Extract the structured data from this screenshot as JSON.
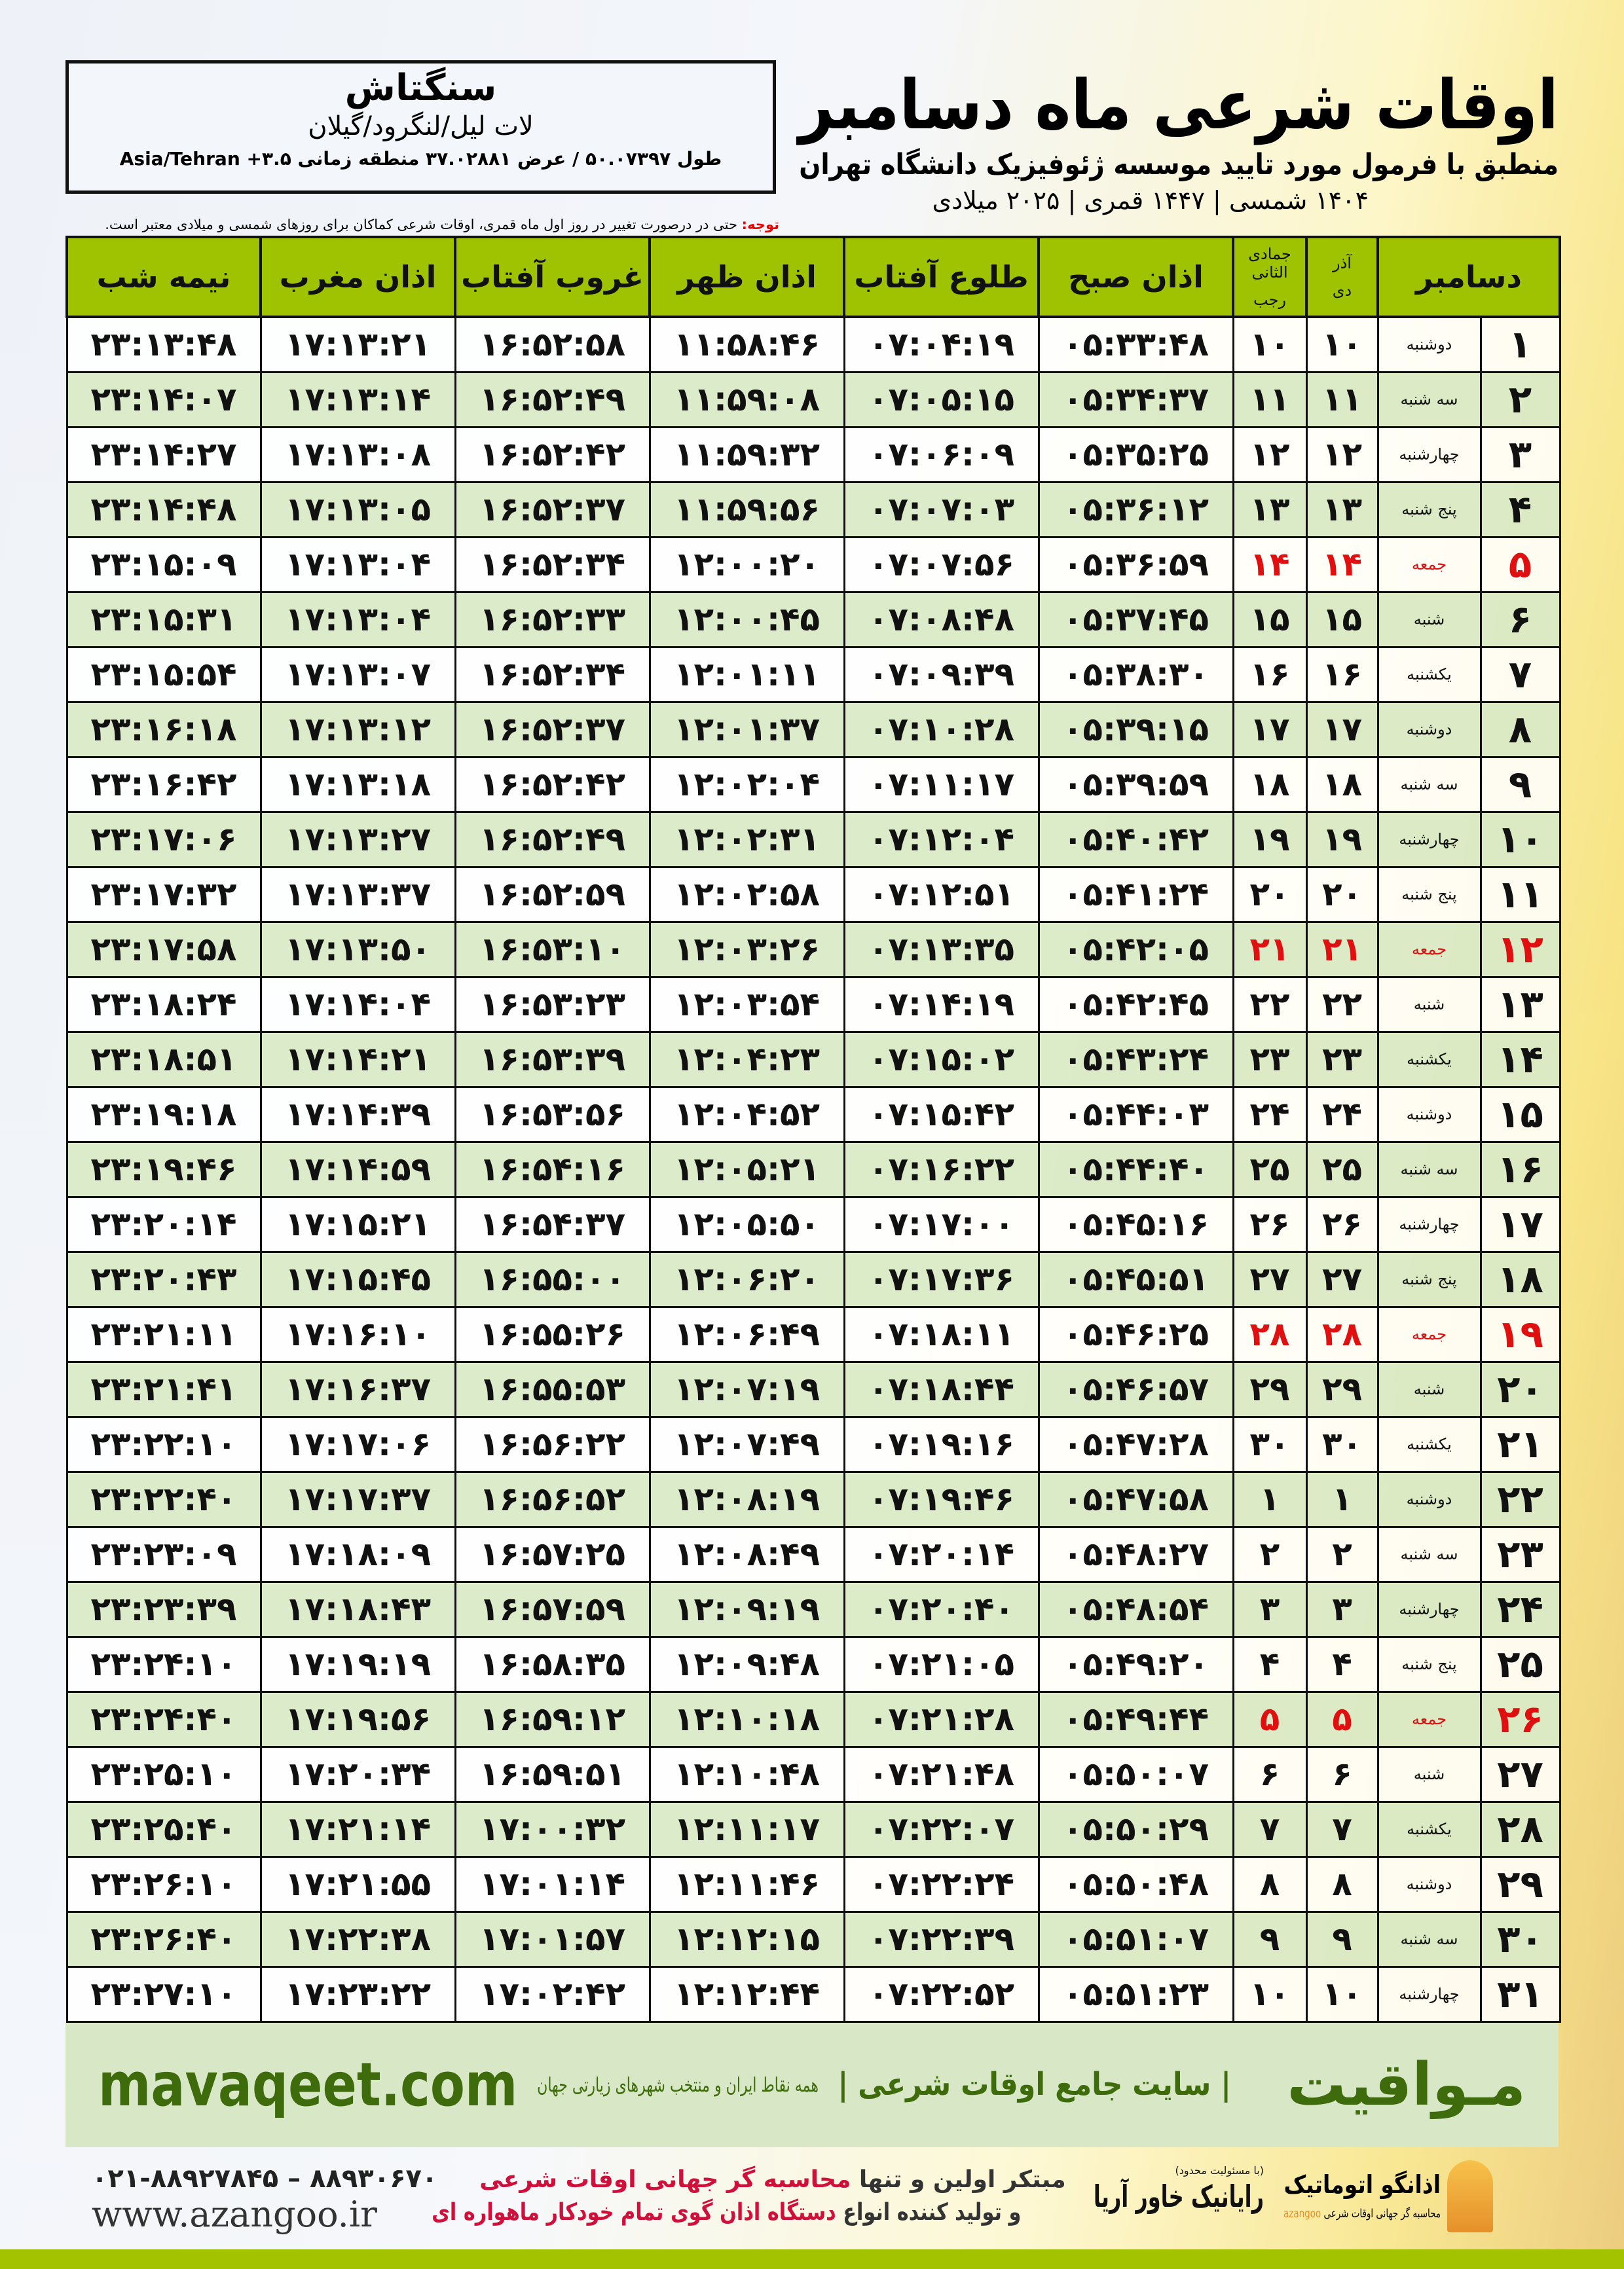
{
  "header": {
    "title": "اوقات شرعی ماه دسامبر",
    "subtitle": "منطبق با فرمول مورد تایید موسسه ژئوفیزیک دانشگاه تهران",
    "dates": "۱۴۰۴ شمسی | ۱۴۴۷ قمری | ۲۰۲۵ میلادی"
  },
  "location": {
    "city": "سنگتاش",
    "region": "لات لیل/لنگرود/گیلان",
    "coords": "طول ۵۰.۰۷۳۹۷ / عرض ۳۷.۰۲۸۸۱ منطقه زمانی ۳.۵+ Asia/Tehran"
  },
  "note": {
    "label": "توجه:",
    "text": " حتی در درصورت تغییر در روز اول ماه قمری، اوقات شرعی کماکان برای روزهای شمسی و میلادی معتبر است."
  },
  "table": {
    "headers": {
      "month": "دسامبر",
      "dey_top": "آذر",
      "dey": "دی",
      "rajab_top": "جمادی الثانی",
      "rajab": "رجب",
      "sobh": "اذان صبح",
      "tolu": "طلوع آفتاب",
      "zohr": "اذان ظهر",
      "ghorub": "غروب آفتاب",
      "maghrib": "اذان مغرب",
      "nime": "نیمه شب"
    },
    "friday_color": "#e01010",
    "header_color": "#9fc300",
    "rows": [
      {
        "d": "۱",
        "w": "دوشنبه",
        "dey": "۱۰",
        "rj": "۱۰",
        "sobh": "۰۵:۳۳:۴۸",
        "tolu": "۰۷:۰۴:۱۹",
        "zohr": "۱۱:۵۸:۴۶",
        "ghorub": "۱۶:۵۲:۵۸",
        "maghrib": "۱۷:۱۳:۲۱",
        "nime": "۲۳:۱۳:۴۸"
      },
      {
        "d": "۲",
        "w": "سه شنبه",
        "dey": "۱۱",
        "rj": "۱۱",
        "sobh": "۰۵:۳۴:۳۷",
        "tolu": "۰۷:۰۵:۱۵",
        "zohr": "۱۱:۵۹:۰۸",
        "ghorub": "۱۶:۵۲:۴۹",
        "maghrib": "۱۷:۱۳:۱۴",
        "nime": "۲۳:۱۴:۰۷"
      },
      {
        "d": "۳",
        "w": "چهارشنبه",
        "dey": "۱۲",
        "rj": "۱۲",
        "sobh": "۰۵:۳۵:۲۵",
        "tolu": "۰۷:۰۶:۰۹",
        "zohr": "۱۱:۵۹:۳۲",
        "ghorub": "۱۶:۵۲:۴۲",
        "maghrib": "۱۷:۱۳:۰۸",
        "nime": "۲۳:۱۴:۲۷"
      },
      {
        "d": "۴",
        "w": "پنج شنبه",
        "dey": "۱۳",
        "rj": "۱۳",
        "sobh": "۰۵:۳۶:۱۲",
        "tolu": "۰۷:۰۷:۰۳",
        "zohr": "۱۱:۵۹:۵۶",
        "ghorub": "۱۶:۵۲:۳۷",
        "maghrib": "۱۷:۱۳:۰۵",
        "nime": "۲۳:۱۴:۴۸"
      },
      {
        "d": "۵",
        "w": "جمعه",
        "dey": "۱۴",
        "rj": "۱۴",
        "sobh": "۰۵:۳۶:۵۹",
        "tolu": "۰۷:۰۷:۵۶",
        "zohr": "۱۲:۰۰:۲۰",
        "ghorub": "۱۶:۵۲:۳۴",
        "maghrib": "۱۷:۱۳:۰۴",
        "nime": "۲۳:۱۵:۰۹",
        "fri": true
      },
      {
        "d": "۶",
        "w": "شنبه",
        "dey": "۱۵",
        "rj": "۱۵",
        "sobh": "۰۵:۳۷:۴۵",
        "tolu": "۰۷:۰۸:۴۸",
        "zohr": "۱۲:۰۰:۴۵",
        "ghorub": "۱۶:۵۲:۳۳",
        "maghrib": "۱۷:۱۳:۰۴",
        "nime": "۲۳:۱۵:۳۱"
      },
      {
        "d": "۷",
        "w": "یکشنبه",
        "dey": "۱۶",
        "rj": "۱۶",
        "sobh": "۰۵:۳۸:۳۰",
        "tolu": "۰۷:۰۹:۳۹",
        "zohr": "۱۲:۰۱:۱۱",
        "ghorub": "۱۶:۵۲:۳۴",
        "maghrib": "۱۷:۱۳:۰۷",
        "nime": "۲۳:۱۵:۵۴"
      },
      {
        "d": "۸",
        "w": "دوشنبه",
        "dey": "۱۷",
        "rj": "۱۷",
        "sobh": "۰۵:۳۹:۱۵",
        "tolu": "۰۷:۱۰:۲۸",
        "zohr": "۱۲:۰۱:۳۷",
        "ghorub": "۱۶:۵۲:۳۷",
        "maghrib": "۱۷:۱۳:۱۲",
        "nime": "۲۳:۱۶:۱۸"
      },
      {
        "d": "۹",
        "w": "سه شنبه",
        "dey": "۱۸",
        "rj": "۱۸",
        "sobh": "۰۵:۳۹:۵۹",
        "tolu": "۰۷:۱۱:۱۷",
        "zohr": "۱۲:۰۲:۰۴",
        "ghorub": "۱۶:۵۲:۴۲",
        "maghrib": "۱۷:۱۳:۱۸",
        "nime": "۲۳:۱۶:۴۲"
      },
      {
        "d": "۱۰",
        "w": "چهارشنبه",
        "dey": "۱۹",
        "rj": "۱۹",
        "sobh": "۰۵:۴۰:۴۲",
        "tolu": "۰۷:۱۲:۰۴",
        "zohr": "۱۲:۰۲:۳۱",
        "ghorub": "۱۶:۵۲:۴۹",
        "maghrib": "۱۷:۱۳:۲۷",
        "nime": "۲۳:۱۷:۰۶"
      },
      {
        "d": "۱۱",
        "w": "پنج شنبه",
        "dey": "۲۰",
        "rj": "۲۰",
        "sobh": "۰۵:۴۱:۲۴",
        "tolu": "۰۷:۱۲:۵۱",
        "zohr": "۱۲:۰۲:۵۸",
        "ghorub": "۱۶:۵۲:۵۹",
        "maghrib": "۱۷:۱۳:۳۷",
        "nime": "۲۳:۱۷:۳۲"
      },
      {
        "d": "۱۲",
        "w": "جمعه",
        "dey": "۲۱",
        "rj": "۲۱",
        "sobh": "۰۵:۴۲:۰۵",
        "tolu": "۰۷:۱۳:۳۵",
        "zohr": "۱۲:۰۳:۲۶",
        "ghorub": "۱۶:۵۳:۱۰",
        "maghrib": "۱۷:۱۳:۵۰",
        "nime": "۲۳:۱۷:۵۸",
        "fri": true
      },
      {
        "d": "۱۳",
        "w": "شنبه",
        "dey": "۲۲",
        "rj": "۲۲",
        "sobh": "۰۵:۴۲:۴۵",
        "tolu": "۰۷:۱۴:۱۹",
        "zohr": "۱۲:۰۳:۵۴",
        "ghorub": "۱۶:۵۳:۲۳",
        "maghrib": "۱۷:۱۴:۰۴",
        "nime": "۲۳:۱۸:۲۴"
      },
      {
        "d": "۱۴",
        "w": "یکشنبه",
        "dey": "۲۳",
        "rj": "۲۳",
        "sobh": "۰۵:۴۳:۲۴",
        "tolu": "۰۷:۱۵:۰۲",
        "zohr": "۱۲:۰۴:۲۳",
        "ghorub": "۱۶:۵۳:۳۹",
        "maghrib": "۱۷:۱۴:۲۱",
        "nime": "۲۳:۱۸:۵۱"
      },
      {
        "d": "۱۵",
        "w": "دوشنبه",
        "dey": "۲۴",
        "rj": "۲۴",
        "sobh": "۰۵:۴۴:۰۳",
        "tolu": "۰۷:۱۵:۴۲",
        "zohr": "۱۲:۰۴:۵۲",
        "ghorub": "۱۶:۵۳:۵۶",
        "maghrib": "۱۷:۱۴:۳۹",
        "nime": "۲۳:۱۹:۱۸"
      },
      {
        "d": "۱۶",
        "w": "سه شنبه",
        "dey": "۲۵",
        "rj": "۲۵",
        "sobh": "۰۵:۴۴:۴۰",
        "tolu": "۰۷:۱۶:۲۲",
        "zohr": "۱۲:۰۵:۲۱",
        "ghorub": "۱۶:۵۴:۱۶",
        "maghrib": "۱۷:۱۴:۵۹",
        "nime": "۲۳:۱۹:۴۶"
      },
      {
        "d": "۱۷",
        "w": "چهارشنبه",
        "dey": "۲۶",
        "rj": "۲۶",
        "sobh": "۰۵:۴۵:۱۶",
        "tolu": "۰۷:۱۷:۰۰",
        "zohr": "۱۲:۰۵:۵۰",
        "ghorub": "۱۶:۵۴:۳۷",
        "maghrib": "۱۷:۱۵:۲۱",
        "nime": "۲۳:۲۰:۱۴"
      },
      {
        "d": "۱۸",
        "w": "پنج شنبه",
        "dey": "۲۷",
        "rj": "۲۷",
        "sobh": "۰۵:۴۵:۵۱",
        "tolu": "۰۷:۱۷:۳۶",
        "zohr": "۱۲:۰۶:۲۰",
        "ghorub": "۱۶:۵۵:۰۰",
        "maghrib": "۱۷:۱۵:۴۵",
        "nime": "۲۳:۲۰:۴۳"
      },
      {
        "d": "۱۹",
        "w": "جمعه",
        "dey": "۲۸",
        "rj": "۲۸",
        "sobh": "۰۵:۴۶:۲۵",
        "tolu": "۰۷:۱۸:۱۱",
        "zohr": "۱۲:۰۶:۴۹",
        "ghorub": "۱۶:۵۵:۲۶",
        "maghrib": "۱۷:۱۶:۱۰",
        "nime": "۲۳:۲۱:۱۱",
        "fri": true
      },
      {
        "d": "۲۰",
        "w": "شنبه",
        "dey": "۲۹",
        "rj": "۲۹",
        "sobh": "۰۵:۴۶:۵۷",
        "tolu": "۰۷:۱۸:۴۴",
        "zohr": "۱۲:۰۷:۱۹",
        "ghorub": "۱۶:۵۵:۵۳",
        "maghrib": "۱۷:۱۶:۳۷",
        "nime": "۲۳:۲۱:۴۱"
      },
      {
        "d": "۲۱",
        "w": "یکشنبه",
        "dey": "۳۰",
        "rj": "۳۰",
        "sobh": "۰۵:۴۷:۲۸",
        "tolu": "۰۷:۱۹:۱۶",
        "zohr": "۱۲:۰۷:۴۹",
        "ghorub": "۱۶:۵۶:۲۲",
        "maghrib": "۱۷:۱۷:۰۶",
        "nime": "۲۳:۲۲:۱۰"
      },
      {
        "d": "۲۲",
        "w": "دوشنبه",
        "dey": "۱",
        "rj": "۱",
        "sobh": "۰۵:۴۷:۵۸",
        "tolu": "۰۷:۱۹:۴۶",
        "zohr": "۱۲:۰۸:۱۹",
        "ghorub": "۱۶:۵۶:۵۲",
        "maghrib": "۱۷:۱۷:۳۷",
        "nime": "۲۳:۲۲:۴۰"
      },
      {
        "d": "۲۳",
        "w": "سه شنبه",
        "dey": "۲",
        "rj": "۲",
        "sobh": "۰۵:۴۸:۲۷",
        "tolu": "۰۷:۲۰:۱۴",
        "zohr": "۱۲:۰۸:۴۹",
        "ghorub": "۱۶:۵۷:۲۵",
        "maghrib": "۱۷:۱۸:۰۹",
        "nime": "۲۳:۲۳:۰۹"
      },
      {
        "d": "۲۴",
        "w": "چهارشنبه",
        "dey": "۳",
        "rj": "۳",
        "sobh": "۰۵:۴۸:۵۴",
        "tolu": "۰۷:۲۰:۴۰",
        "zohr": "۱۲:۰۹:۱۹",
        "ghorub": "۱۶:۵۷:۵۹",
        "maghrib": "۱۷:۱۸:۴۳",
        "nime": "۲۳:۲۳:۳۹"
      },
      {
        "d": "۲۵",
        "w": "پنج شنبه",
        "dey": "۴",
        "rj": "۴",
        "sobh": "۰۵:۴۹:۲۰",
        "tolu": "۰۷:۲۱:۰۵",
        "zohr": "۱۲:۰۹:۴۸",
        "ghorub": "۱۶:۵۸:۳۵",
        "maghrib": "۱۷:۱۹:۱۹",
        "nime": "۲۳:۲۴:۱۰"
      },
      {
        "d": "۲۶",
        "w": "جمعه",
        "dey": "۵",
        "rj": "۵",
        "sobh": "۰۵:۴۹:۴۴",
        "tolu": "۰۷:۲۱:۲۸",
        "zohr": "۱۲:۱۰:۱۸",
        "ghorub": "۱۶:۵۹:۱۲",
        "maghrib": "۱۷:۱۹:۵۶",
        "nime": "۲۳:۲۴:۴۰",
        "fri": true
      },
      {
        "d": "۲۷",
        "w": "شنبه",
        "dey": "۶",
        "rj": "۶",
        "sobh": "۰۵:۵۰:۰۷",
        "tolu": "۰۷:۲۱:۴۸",
        "zohr": "۱۲:۱۰:۴۸",
        "ghorub": "۱۶:۵۹:۵۱",
        "maghrib": "۱۷:۲۰:۳۴",
        "nime": "۲۳:۲۵:۱۰"
      },
      {
        "d": "۲۸",
        "w": "یکشنبه",
        "dey": "۷",
        "rj": "۷",
        "sobh": "۰۵:۵۰:۲۹",
        "tolu": "۰۷:۲۲:۰۷",
        "zohr": "۱۲:۱۱:۱۷",
        "ghorub": "۱۷:۰۰:۳۲",
        "maghrib": "۱۷:۲۱:۱۴",
        "nime": "۲۳:۲۵:۴۰"
      },
      {
        "d": "۲۹",
        "w": "دوشنبه",
        "dey": "۸",
        "rj": "۸",
        "sobh": "۰۵:۵۰:۴۸",
        "tolu": "۰۷:۲۲:۲۴",
        "zohr": "۱۲:۱۱:۴۶",
        "ghorub": "۱۷:۰۱:۱۴",
        "maghrib": "۱۷:۲۱:۵۵",
        "nime": "۲۳:۲۶:۱۰"
      },
      {
        "d": "۳۰",
        "w": "سه شنبه",
        "dey": "۹",
        "rj": "۹",
        "sobh": "۰۵:۵۱:۰۷",
        "tolu": "۰۷:۲۲:۳۹",
        "zohr": "۱۲:۱۲:۱۵",
        "ghorub": "۱۷:۰۱:۵۷",
        "maghrib": "۱۷:۲۲:۳۸",
        "nime": "۲۳:۲۶:۴۰"
      },
      {
        "d": "۳۱",
        "w": "چهارشنبه",
        "dey": "۱۰",
        "rj": "۱۰",
        "sobh": "۰۵:۵۱:۲۳",
        "tolu": "۰۷:۲۲:۵۲",
        "zohr": "۱۲:۱۲:۴۴",
        "ghorub": "۱۷:۰۲:۴۲",
        "maghrib": "۱۷:۲۳:۲۲",
        "nime": "۲۳:۲۷:۱۰"
      }
    ]
  },
  "banner": {
    "logo": "مـواقیت",
    "tagline": "| سایت جامع اوقات شرعی |",
    "sub": "همه نقاط ایران و منتخب شهرهای زیارتی جهان",
    "site": "mavaqeet.com",
    "color": "#3e6b0b"
  },
  "footer": {
    "phone": "۰۲۱-۸۸۹۲۷۸۴۵ – ۸۸۹۳۰۶۷۰",
    "web": "www.azangoo.ir",
    "promo1a": "مبتکر اولین و تنها ",
    "promo1b": "محاسبه گر جهانی اوقات شرعی",
    "promo2a": "و تولید کننده انواع ",
    "promo2b": "دستگاه اذان گوی تمام خودکار ماهواره ای",
    "rayanik_small": "(با مسئولیت محدود)",
    "rayanik": "رایانیک خاور آریا",
    "azangoo_name": "اذانگو اتوماتیک",
    "azangoo_sub": "محاسبه گر جهانی اوقات شرعی",
    "azangoo_latin": "azangoo"
  }
}
